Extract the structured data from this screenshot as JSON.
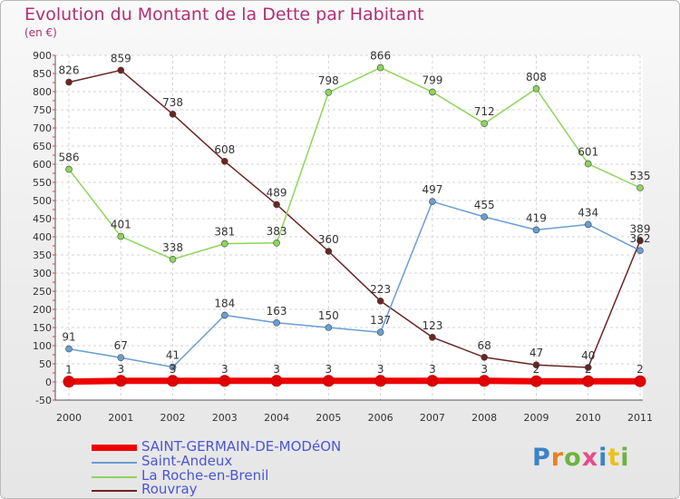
{
  "title": "Evolution du Montant de la Dette par Habitant",
  "unit": "(en €)",
  "logo": {
    "text": "Proxiti",
    "letter_colors": [
      "#3a83c6",
      "#e8821e",
      "#6db33f",
      "#e84a8a",
      "#3a83c6",
      "#e8c21e",
      "#6db33f"
    ]
  },
  "chart_data": {
    "type": "line",
    "x": [
      2000,
      2001,
      2002,
      2003,
      2004,
      2005,
      2006,
      2007,
      2008,
      2009,
      2010,
      2011
    ],
    "x_tick_labels": [
      "2000",
      "2001",
      "2002",
      "2003",
      "2004",
      "2005",
      "2006",
      "2007",
      "2008",
      "2009",
      "2010",
      "2011"
    ],
    "ylim": [
      -50,
      900
    ],
    "y_ticks": [
      -50,
      0,
      50,
      100,
      150,
      200,
      250,
      300,
      350,
      400,
      450,
      500,
      550,
      600,
      650,
      700,
      750,
      800,
      850,
      900
    ],
    "y_tick_labels": [
      "-50",
      "0",
      "50",
      "100",
      "150",
      "200",
      "250",
      "300",
      "350",
      "400",
      "450",
      "500",
      "550",
      "600",
      "650",
      "700",
      "750",
      "800",
      "850",
      "900"
    ],
    "grid": true,
    "legend_position": "bottom-left",
    "series": [
      {
        "name": "SAINT-GERMAIN-DE-MODéON",
        "color": "#ee0000",
        "values": [
          1,
          3,
          3,
          3,
          3,
          3,
          3,
          3,
          3,
          2,
          2,
          2
        ],
        "labels": [
          "1",
          "3",
          "3",
          "3",
          "3",
          "3",
          "3",
          "3",
          "3",
          "2",
          "2",
          "2"
        ]
      },
      {
        "name": "Saint-Andeux",
        "color": "#6a9ed4",
        "values": [
          91,
          67,
          41,
          184,
          163,
          150,
          137,
          497,
          455,
          419,
          434,
          362
        ],
        "labels": [
          "91",
          "67",
          "41",
          "184",
          "163",
          "150",
          "137",
          "497",
          "455",
          "419",
          "434",
          "362"
        ]
      },
      {
        "name": "La Roche-en-Brenil",
        "color": "#8ed45c",
        "values": [
          586,
          401,
          338,
          381,
          383,
          798,
          866,
          799,
          712,
          808,
          601,
          535
        ],
        "labels": [
          "586",
          "401",
          "338",
          "381",
          "383",
          "798",
          "866",
          "799",
          "712",
          "808",
          "601",
          "535"
        ]
      },
      {
        "name": "Rouvray",
        "color": "#6b2424",
        "values": [
          826,
          859,
          738,
          608,
          489,
          360,
          223,
          123,
          68,
          47,
          40,
          389
        ],
        "labels": [
          "826",
          "859",
          "738",
          "608",
          "489",
          "360",
          "223",
          "123",
          "68",
          "47",
          "40",
          "389"
        ]
      }
    ]
  }
}
